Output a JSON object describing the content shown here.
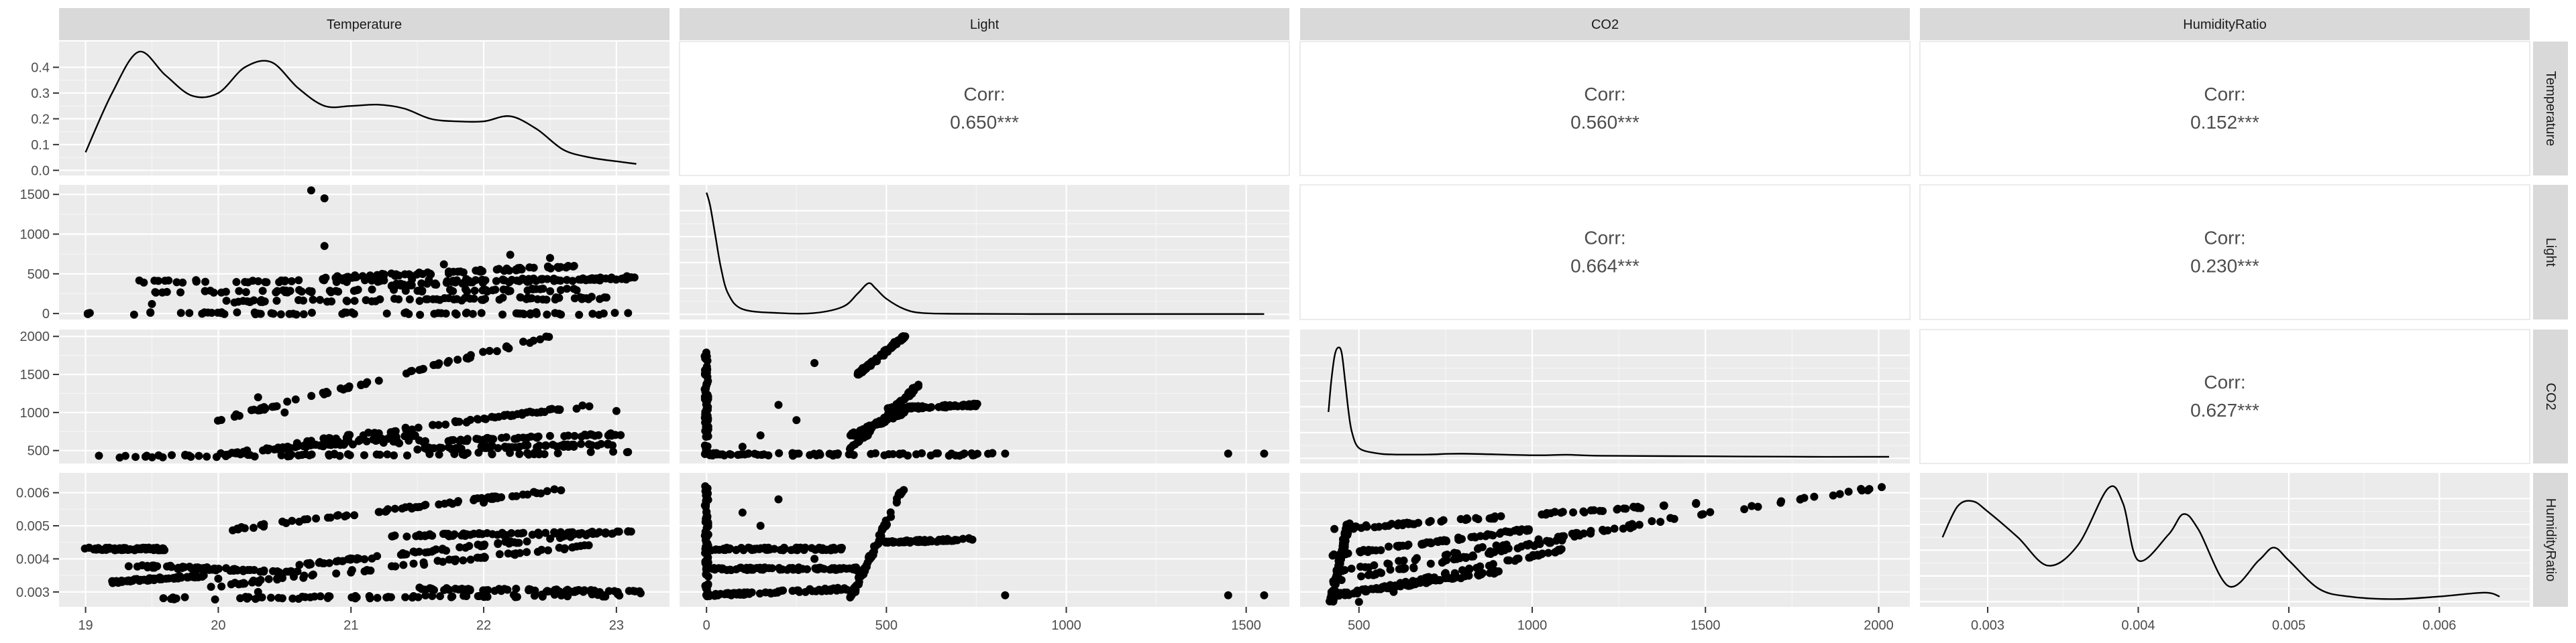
{
  "colors": {
    "panel_bg": "#ebebeb",
    "strip_bg": "#d9d9d9",
    "grid_major": "#ffffff",
    "grid_minor": "#f5f5f5",
    "points": "#000000",
    "text": "#1a1a1a",
    "tick_text": "#4d4d4d",
    "corr_text": "#4d4d4d"
  },
  "chart_data": {
    "type": "scatter",
    "variables": [
      "Temperature",
      "Light",
      "CO2",
      "HumidityRatio"
    ],
    "axis_ranges": {
      "Temperature": [
        18.8,
        23.4
      ],
      "Light": [
        -75,
        1620
      ],
      "CO2": [
        330,
        2090
      ],
      "HumidityRatio": [
        0.00255,
        0.0066
      ]
    },
    "ticks": {
      "Temperature": [
        {
          "value": 19,
          "label": "19"
        },
        {
          "value": 20,
          "label": "20"
        },
        {
          "value": 21,
          "label": "21"
        },
        {
          "value": 22,
          "label": "22"
        },
        {
          "value": 23,
          "label": "23"
        }
      ],
      "Light": [
        {
          "value": 0,
          "label": "0"
        },
        {
          "value": 500,
          "label": "500"
        },
        {
          "value": 1000,
          "label": "1000"
        },
        {
          "value": 1500,
          "label": "1500"
        }
      ],
      "CO2": [
        {
          "value": 500,
          "label": "500"
        },
        {
          "value": 1000,
          "label": "1000"
        },
        {
          "value": 1500,
          "label": "1500"
        },
        {
          "value": 2000,
          "label": "2000"
        }
      ],
      "HumidityRatio": [
        {
          "value": 0.003,
          "label": "0.003"
        },
        {
          "value": 0.004,
          "label": "0.004"
        },
        {
          "value": 0.005,
          "label": "0.005"
        },
        {
          "value": 0.006,
          "label": "0.006"
        }
      ]
    },
    "density_y_axis": {
      "range": [
        -0.02,
        0.5
      ],
      "ticks": [
        {
          "value": 0.0,
          "label": "0.0"
        },
        {
          "value": 0.1,
          "label": "0.1"
        },
        {
          "value": 0.2,
          "label": "0.2"
        },
        {
          "value": 0.3,
          "label": "0.3"
        },
        {
          "value": 0.4,
          "label": "0.4"
        }
      ]
    },
    "correlations": [
      {
        "row": "Temperature",
        "col": "Light",
        "label": "Corr:",
        "value": "0.650***"
      },
      {
        "row": "Temperature",
        "col": "CO2",
        "label": "Corr:",
        "value": "0.560***"
      },
      {
        "row": "Temperature",
        "col": "HumidityRatio",
        "label": "Corr:",
        "value": "0.152***"
      },
      {
        "row": "Light",
        "col": "CO2",
        "label": "Corr:",
        "value": "0.664***"
      },
      {
        "row": "Light",
        "col": "HumidityRatio",
        "label": "Corr:",
        "value": "0.230***"
      },
      {
        "row": "CO2",
        "col": "HumidityRatio",
        "label": "Corr:",
        "value": "0.627***"
      }
    ],
    "densities": {
      "Temperature": {
        "x": [
          19.0,
          19.2,
          19.4,
          19.6,
          19.8,
          20.0,
          20.2,
          20.4,
          20.6,
          20.8,
          21.0,
          21.2,
          21.4,
          21.6,
          21.8,
          22.0,
          22.2,
          22.4,
          22.6,
          22.8,
          23.0,
          23.15
        ],
        "y": [
          0.07,
          0.3,
          0.46,
          0.37,
          0.29,
          0.3,
          0.4,
          0.42,
          0.32,
          0.25,
          0.25,
          0.255,
          0.24,
          0.2,
          0.19,
          0.19,
          0.21,
          0.16,
          0.08,
          0.05,
          0.035,
          0.025
        ]
      },
      "Light": {
        "x": [
          0,
          10,
          25,
          40,
          60,
          100,
          200,
          300,
          380,
          420,
          450,
          470,
          500,
          550,
          600,
          700,
          900,
          1200,
          1550
        ],
        "y": [
          0.47,
          0.42,
          0.3,
          0.18,
          0.08,
          0.02,
          0.005,
          0.005,
          0.03,
          0.08,
          0.12,
          0.1,
          0.06,
          0.02,
          0.005,
          0.002,
          0.001,
          0.001,
          0.001
        ]
      },
      "CO2": {
        "x": [
          412,
          420,
          430,
          440,
          450,
          460,
          470,
          480,
          500,
          550,
          600,
          700,
          800,
          1000,
          1100,
          1200,
          1500,
          1800,
          2030
        ],
        "y": [
          0.18,
          0.3,
          0.4,
          0.43,
          0.41,
          0.3,
          0.18,
          0.1,
          0.04,
          0.02,
          0.015,
          0.015,
          0.018,
          0.012,
          0.014,
          0.01,
          0.008,
          0.006,
          0.006
        ]
      },
      "HumidityRatio": {
        "x": [
          0.0027,
          0.0028,
          0.0029,
          0.003,
          0.0032,
          0.0034,
          0.0036,
          0.0038,
          0.0039,
          0.004,
          0.0042,
          0.0043,
          0.0044,
          0.0046,
          0.0048,
          0.0049,
          0.005,
          0.0052,
          0.0054,
          0.0057,
          0.006,
          0.0063,
          0.0064
        ],
        "y": [
          0.25,
          0.37,
          0.39,
          0.35,
          0.25,
          0.14,
          0.22,
          0.44,
          0.38,
          0.16,
          0.26,
          0.34,
          0.28,
          0.06,
          0.16,
          0.21,
          0.16,
          0.05,
          0.02,
          0.01,
          0.02,
          0.035,
          0.02
        ]
      }
    },
    "scatter": {
      "Light_vs_Temperature": {
        "x_var": "Temperature",
        "y_var": "Light",
        "bands": [
          {
            "x": [
              19.0,
              23.1
            ],
            "y": [
              0,
              0
            ]
          },
          {
            "x": [
              19.4,
              23.1
            ],
            "y": [
              400,
              430
            ]
          },
          {
            "x": [
              19.5,
              22.7
            ],
            "y": [
              270,
              300
            ]
          },
          {
            "x": [
              20.8,
              22.8
            ],
            "y": [
              450,
              600
            ]
          },
          {
            "x": [
              20.0,
              23.0
            ],
            "y": [
              150,
              200
            ]
          },
          {
            "x": [
              21.3,
              23.2
            ],
            "y": [
              360,
              460
            ]
          }
        ],
        "points": [
          [
            20.7,
            1550
          ],
          [
            20.8,
            1450
          ],
          [
            20.8,
            850
          ],
          [
            22.5,
            700
          ],
          [
            22.2,
            740
          ],
          [
            19.5,
            120
          ],
          [
            21.7,
            620
          ]
        ]
      },
      "CO2_vs_Temperature": {
        "x_var": "Temperature",
        "y_var": "CO2",
        "bands": [
          {
            "x": [
              19.0,
              23.1
            ],
            "y": [
              420,
              470
            ]
          },
          {
            "x": [
              20.0,
              22.5
            ],
            "y": [
              900,
              2000
            ]
          },
          {
            "x": [
              20.6,
              23.1
            ],
            "y": [
              560,
              720
            ]
          },
          {
            "x": [
              20.6,
              22.8
            ],
            "y": [
              600,
              1100
            ]
          },
          {
            "x": [
              21.5,
              23.0
            ],
            "y": [
              520,
              580
            ]
          },
          {
            "x": [
              20.0,
              21.5
            ],
            "y": [
              450,
              700
            ]
          }
        ],
        "points": [
          [
            20.3,
            1200
          ],
          [
            20.5,
            1000
          ],
          [
            22.7,
            1050
          ],
          [
            23.0,
            1020
          ],
          [
            19.3,
            430
          ]
        ]
      },
      "HumidityRatio_vs_Temperature": {
        "x_var": "Temperature",
        "y_var": "HumidityRatio",
        "bands": [
          {
            "x": [
              19.0,
              19.6
            ],
            "y": [
              0.0043,
              0.0043
            ]
          },
          {
            "x": [
              19.3,
              20.6
            ],
            "y": [
              0.0038,
              0.0036
            ]
          },
          {
            "x": [
              20.1,
              22.6
            ],
            "y": [
              0.0049,
              0.0061
            ]
          },
          {
            "x": [
              20.6,
              22.9
            ],
            "y": [
              0.0038,
              0.0048
            ]
          },
          {
            "x": [
              19.8,
              22.8
            ],
            "y": [
              0.0031,
              0.0044
            ]
          },
          {
            "x": [
              19.5,
              23.1
            ],
            "y": [
              0.0028,
              0.0029
            ]
          },
          {
            "x": [
              21.5,
              23.2
            ],
            "y": [
              0.0031,
              0.003
            ]
          },
          {
            "x": [
              21.3,
              23.1
            ],
            "y": [
              0.0047,
              0.0048
            ]
          },
          {
            "x": [
              19.2,
              19.9
            ],
            "y": [
              0.0033,
              0.0035
            ]
          }
        ],
        "points": [
          [
            20.0,
            0.0034
          ],
          [
            20.3,
            0.003
          ],
          [
            22.0,
            0.0057
          ]
        ]
      },
      "CO2_vs_Light": {
        "x_var": "Light",
        "y_var": "CO2",
        "bands": [
          {
            "x": [
              0,
              0
            ],
            "y": [
              430,
              1800
            ]
          },
          {
            "x": [
              0,
              800
            ],
            "y": [
              450,
              450
            ]
          },
          {
            "x": [
              400,
              600
            ],
            "y": [
              520,
              1400
            ]
          },
          {
            "x": [
              420,
              550
            ],
            "y": [
              1500,
              2000
            ]
          },
          {
            "x": [
              500,
              750
            ],
            "y": [
              1050,
              1100
            ]
          },
          {
            "x": [
              400,
              550
            ],
            "y": [
              700,
              1000
            ]
          }
        ],
        "points": [
          [
            100,
            550
          ],
          [
            150,
            700
          ],
          [
            200,
            1100
          ],
          [
            300,
            1650
          ],
          [
            250,
            900
          ],
          [
            830,
            460
          ],
          [
            1450,
            460
          ],
          [
            1550,
            460
          ]
        ]
      },
      "HumidityRatio_vs_Light": {
        "x_var": "Light",
        "y_var": "HumidityRatio",
        "bands": [
          {
            "x": [
              0,
              0
            ],
            "y": [
              0.0029,
              0.0062
            ]
          },
          {
            "x": [
              0,
              400
            ],
            "y": [
              0.0029,
              0.0031
            ]
          },
          {
            "x": [
              0,
              380
            ],
            "y": [
              0.0043,
              0.0043
            ]
          },
          {
            "x": [
              0,
              420
            ],
            "y": [
              0.0037,
              0.0037
            ]
          },
          {
            "x": [
              400,
              550
            ],
            "y": [
              0.0028,
              0.0062
            ]
          },
          {
            "x": [
              500,
              740
            ],
            "y": [
              0.0045,
              0.0046
            ]
          }
        ],
        "points": [
          [
            100,
            0.0054
          ],
          [
            150,
            0.005
          ],
          [
            200,
            0.0058
          ],
          [
            300,
            0.004
          ],
          [
            830,
            0.0029
          ],
          [
            1450,
            0.0029
          ],
          [
            1550,
            0.0029
          ]
        ]
      },
      "HumidityRatio_vs_CO2": {
        "x_var": "CO2",
        "y_var": "HumidityRatio",
        "bands": [
          {
            "x": [
              420,
              2020
            ],
            "y": [
              0.0036,
              0.0062
            ]
          },
          {
            "x": [
              420,
              1500
            ],
            "y": [
              0.0049,
              0.0057
            ]
          },
          {
            "x": [
              420,
              1300
            ],
            "y": [
              0.0033,
              0.005
            ]
          },
          {
            "x": [
              420,
              1100
            ],
            "y": [
              0.0028,
              0.0043
            ]
          },
          {
            "x": [
              420,
              900
            ],
            "y": [
              0.0029,
              0.0036
            ]
          },
          {
            "x": [
              420,
              1000
            ],
            "y": [
              0.0041,
              0.0049
            ]
          },
          {
            "x": [
              420,
              470
            ],
            "y": [
              0.0027,
              0.0051
            ]
          }
        ],
        "points": [
          [
            500,
            0.0027
          ],
          [
            600,
            0.003
          ],
          [
            700,
            0.0034
          ]
        ]
      }
    }
  }
}
